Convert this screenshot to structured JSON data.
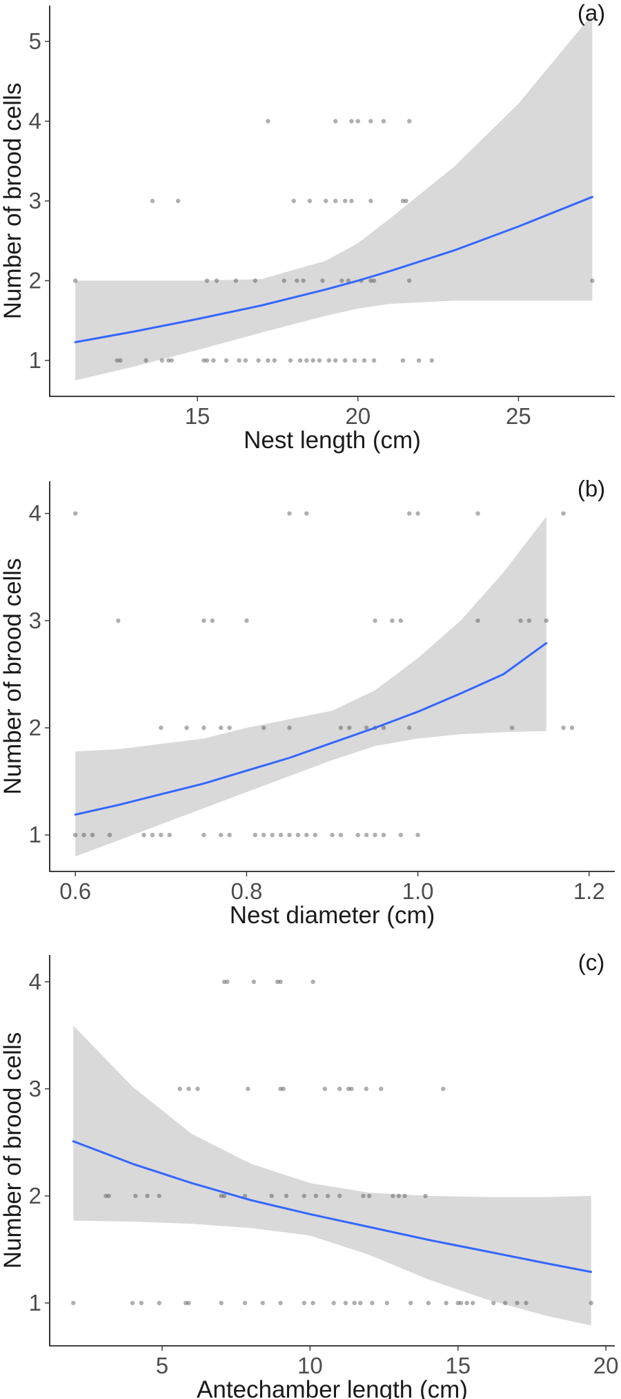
{
  "chart_data": [
    {
      "type": "scatter",
      "panel_label": "(a)",
      "xlabel": "Nest length (cm)",
      "ylabel": "Number of brood cells",
      "xlim": [
        10.4,
        28.0
      ],
      "ylim": [
        0.55,
        5.45
      ],
      "xticks": [
        15,
        20,
        25
      ],
      "yticks": [
        1,
        2,
        3,
        4,
        5
      ],
      "grid": false,
      "colors": {
        "fit": "#3366ff",
        "ribbon": "#d9d9d9",
        "points": "#4d4d4d"
      },
      "points": [
        [
          12.5,
          1
        ],
        [
          12.6,
          1
        ],
        [
          13.4,
          1
        ],
        [
          13.9,
          1
        ],
        [
          14.1,
          1
        ],
        [
          14.2,
          1
        ],
        [
          15.2,
          1
        ],
        [
          15.3,
          1
        ],
        [
          15.5,
          1
        ],
        [
          15.9,
          1
        ],
        [
          16.3,
          1
        ],
        [
          16.5,
          1
        ],
        [
          16.9,
          1
        ],
        [
          17.2,
          1
        ],
        [
          17.4,
          1
        ],
        [
          17.9,
          1
        ],
        [
          18.2,
          1
        ],
        [
          18.4,
          1
        ],
        [
          18.6,
          1
        ],
        [
          18.8,
          1
        ],
        [
          19.1,
          1
        ],
        [
          19.3,
          1
        ],
        [
          19.6,
          1
        ],
        [
          19.9,
          1
        ],
        [
          20.2,
          1
        ],
        [
          20.5,
          1
        ],
        [
          21.4,
          1
        ],
        [
          21.9,
          1
        ],
        [
          22.3,
          1
        ],
        [
          11.2,
          2
        ],
        [
          15.3,
          2
        ],
        [
          15.6,
          2
        ],
        [
          16.2,
          2
        ],
        [
          16.8,
          2
        ],
        [
          17.7,
          2
        ],
        [
          18.1,
          2
        ],
        [
          18.3,
          2
        ],
        [
          18.9,
          2
        ],
        [
          19.5,
          2
        ],
        [
          19.7,
          2
        ],
        [
          20.1,
          2
        ],
        [
          20.4,
          2
        ],
        [
          20.5,
          2
        ],
        [
          21.6,
          2
        ],
        [
          27.3,
          2
        ],
        [
          13.6,
          3
        ],
        [
          14.4,
          3
        ],
        [
          18.0,
          3
        ],
        [
          18.5,
          3
        ],
        [
          19.0,
          3
        ],
        [
          19.3,
          3
        ],
        [
          19.6,
          3
        ],
        [
          19.8,
          3
        ],
        [
          20.4,
          3
        ],
        [
          21.4,
          3
        ],
        [
          21.5,
          3
        ],
        [
          17.2,
          4
        ],
        [
          19.3,
          4
        ],
        [
          19.8,
          4
        ],
        [
          20.0,
          4
        ],
        [
          20.4,
          4
        ],
        [
          20.8,
          4
        ],
        [
          21.6,
          4
        ]
      ],
      "fit": {
        "x": [
          11.2,
          13,
          15,
          17,
          19,
          20,
          21,
          23,
          25,
          27.3
        ],
        "y": [
          1.23,
          1.36,
          1.52,
          1.69,
          1.89,
          2.0,
          2.12,
          2.38,
          2.68,
          3.05
        ],
        "lower": [
          0.75,
          0.92,
          1.13,
          1.35,
          1.56,
          1.65,
          1.71,
          1.75,
          1.75,
          1.75
        ],
        "upper": [
          2.0,
          2.0,
          2.0,
          2.02,
          2.25,
          2.47,
          2.78,
          3.43,
          4.22,
          5.34
        ]
      }
    },
    {
      "type": "scatter",
      "panel_label": "(b)",
      "xlabel": "Nest diameter (cm)",
      "ylabel": "Number of brood cells",
      "xlim": [
        0.57,
        1.23
      ],
      "ylim": [
        0.66,
        4.3
      ],
      "xticks": [
        0.6,
        0.8,
        1.0,
        1.2
      ],
      "xtick_labels": [
        "0.6",
        "0.8",
        "1.0",
        "1.2"
      ],
      "yticks": [
        1,
        2,
        3,
        4
      ],
      "grid": false,
      "colors": {
        "fit": "#3366ff",
        "ribbon": "#d9d9d9",
        "points": "#4d4d4d"
      },
      "points": [
        [
          0.6,
          1
        ],
        [
          0.61,
          1
        ],
        [
          0.62,
          1
        ],
        [
          0.64,
          1
        ],
        [
          0.68,
          1
        ],
        [
          0.69,
          1
        ],
        [
          0.7,
          1
        ],
        [
          0.71,
          1
        ],
        [
          0.75,
          1
        ],
        [
          0.77,
          1
        ],
        [
          0.78,
          1
        ],
        [
          0.81,
          1
        ],
        [
          0.82,
          1
        ],
        [
          0.83,
          1
        ],
        [
          0.84,
          1
        ],
        [
          0.85,
          1
        ],
        [
          0.86,
          1
        ],
        [
          0.87,
          1
        ],
        [
          0.88,
          1
        ],
        [
          0.9,
          1
        ],
        [
          0.91,
          1
        ],
        [
          0.93,
          1
        ],
        [
          0.94,
          1
        ],
        [
          0.95,
          1
        ],
        [
          0.96,
          1
        ],
        [
          0.98,
          1
        ],
        [
          1.0,
          1
        ],
        [
          0.7,
          2
        ],
        [
          0.73,
          2
        ],
        [
          0.75,
          2
        ],
        [
          0.77,
          2
        ],
        [
          0.78,
          2
        ],
        [
          0.82,
          2
        ],
        [
          0.85,
          2
        ],
        [
          0.91,
          2
        ],
        [
          0.92,
          2
        ],
        [
          0.94,
          2
        ],
        [
          0.95,
          2
        ],
        [
          0.96,
          2
        ],
        [
          0.99,
          2
        ],
        [
          1.11,
          2
        ],
        [
          1.17,
          2
        ],
        [
          1.18,
          2
        ],
        [
          0.65,
          3
        ],
        [
          0.75,
          3
        ],
        [
          0.76,
          3
        ],
        [
          0.8,
          3
        ],
        [
          0.95,
          3
        ],
        [
          0.97,
          3
        ],
        [
          0.98,
          3
        ],
        [
          1.07,
          3
        ],
        [
          1.12,
          3
        ],
        [
          1.13,
          3
        ],
        [
          1.15,
          3
        ],
        [
          0.6,
          4
        ],
        [
          0.85,
          4
        ],
        [
          0.87,
          4
        ],
        [
          0.99,
          4
        ],
        [
          1.0,
          4
        ],
        [
          1.07,
          4
        ],
        [
          1.17,
          4
        ]
      ],
      "fit": {
        "x": [
          0.6,
          0.65,
          0.7,
          0.75,
          0.8,
          0.85,
          0.9,
          0.95,
          1.0,
          1.05,
          1.1,
          1.15
        ],
        "y": [
          1.19,
          1.28,
          1.38,
          1.48,
          1.6,
          1.72,
          1.86,
          2.0,
          2.15,
          2.32,
          2.5,
          2.79
        ],
        "lower": [
          0.8,
          0.95,
          1.1,
          1.25,
          1.4,
          1.55,
          1.7,
          1.83,
          1.9,
          1.94,
          1.96,
          1.97
        ],
        "upper": [
          1.78,
          1.8,
          1.85,
          1.9,
          2.0,
          2.08,
          2.16,
          2.35,
          2.65,
          3.0,
          3.45,
          3.97
        ]
      }
    },
    {
      "type": "scatter",
      "panel_label": "(c)",
      "xlabel": "Antechamber length (cm)",
      "ylabel": "Number of brood cells",
      "xlim": [
        1.2,
        20.3
      ],
      "ylim": [
        0.6,
        4.25
      ],
      "xticks": [
        5,
        10,
        15,
        20
      ],
      "yticks": [
        1,
        2,
        3,
        4
      ],
      "grid": false,
      "colors": {
        "fit": "#3366ff",
        "ribbon": "#d9d9d9",
        "points": "#4d4d4d"
      },
      "points": [
        [
          2.0,
          1
        ],
        [
          4.0,
          1
        ],
        [
          4.3,
          1
        ],
        [
          4.9,
          1
        ],
        [
          5.8,
          1
        ],
        [
          5.9,
          1
        ],
        [
          7.0,
          1
        ],
        [
          7.8,
          1
        ],
        [
          8.4,
          1
        ],
        [
          9.0,
          1
        ],
        [
          9.8,
          1
        ],
        [
          10.1,
          1
        ],
        [
          10.8,
          1
        ],
        [
          11.2,
          1
        ],
        [
          11.5,
          1
        ],
        [
          11.7,
          1
        ],
        [
          12.1,
          1
        ],
        [
          12.6,
          1
        ],
        [
          13.4,
          1
        ],
        [
          14.0,
          1
        ],
        [
          14.6,
          1
        ],
        [
          15.0,
          1
        ],
        [
          15.1,
          1
        ],
        [
          15.3,
          1
        ],
        [
          15.5,
          1
        ],
        [
          16.2,
          1
        ],
        [
          16.6,
          1
        ],
        [
          17.0,
          1
        ],
        [
          17.3,
          1
        ],
        [
          19.5,
          1
        ],
        [
          3.1,
          2
        ],
        [
          3.2,
          2
        ],
        [
          4.1,
          2
        ],
        [
          4.5,
          2
        ],
        [
          4.9,
          2
        ],
        [
          7.0,
          2
        ],
        [
          7.1,
          2
        ],
        [
          7.8,
          2
        ],
        [
          8.7,
          2
        ],
        [
          9.2,
          2
        ],
        [
          9.8,
          2
        ],
        [
          10.2,
          2
        ],
        [
          10.6,
          2
        ],
        [
          11.0,
          2
        ],
        [
          11.8,
          2
        ],
        [
          12.0,
          2
        ],
        [
          12.8,
          2
        ],
        [
          13.0,
          2
        ],
        [
          13.2,
          2
        ],
        [
          13.9,
          2
        ],
        [
          5.6,
          3
        ],
        [
          5.9,
          3
        ],
        [
          6.2,
          3
        ],
        [
          7.9,
          3
        ],
        [
          9.0,
          3
        ],
        [
          9.1,
          3
        ],
        [
          10.5,
          3
        ],
        [
          11.0,
          3
        ],
        [
          11.3,
          3
        ],
        [
          11.4,
          3
        ],
        [
          11.9,
          3
        ],
        [
          12.4,
          3
        ],
        [
          14.5,
          3
        ],
        [
          7.1,
          4
        ],
        [
          7.2,
          4
        ],
        [
          8.1,
          4
        ],
        [
          8.9,
          4
        ],
        [
          9.0,
          4
        ],
        [
          10.1,
          4
        ]
      ],
      "fit": {
        "x": [
          2.0,
          4,
          6,
          8,
          10,
          12,
          14,
          16,
          18,
          19.5
        ],
        "y": [
          2.51,
          2.3,
          2.12,
          1.96,
          1.83,
          1.71,
          1.59,
          1.48,
          1.37,
          1.29
        ],
        "lower": [
          1.77,
          1.76,
          1.74,
          1.7,
          1.63,
          1.45,
          1.22,
          1.03,
          0.88,
          0.79
        ],
        "upper": [
          3.59,
          3.02,
          2.58,
          2.3,
          2.12,
          2.03,
          2.0,
          1.99,
          1.99,
          2.0
        ]
      }
    }
  ]
}
